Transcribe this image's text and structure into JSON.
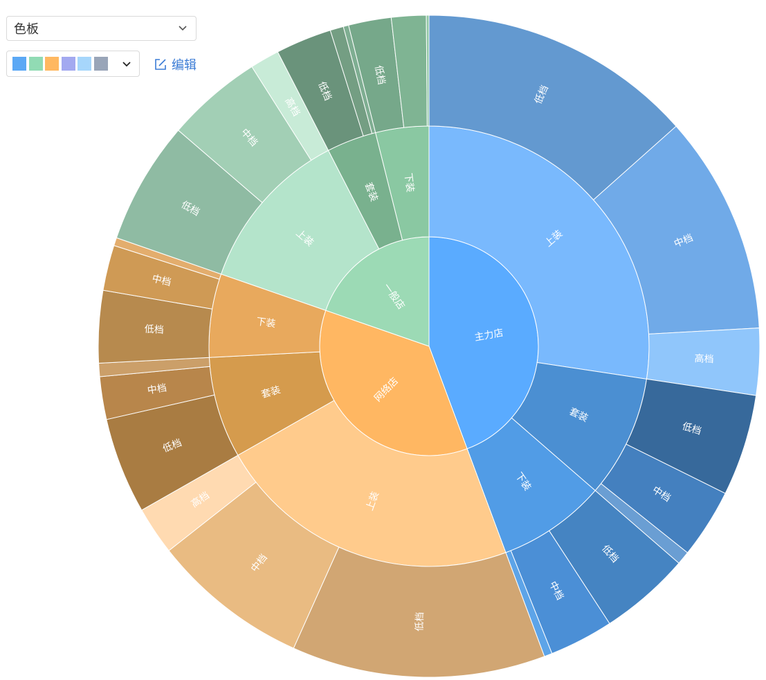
{
  "controls": {
    "palette_select": {
      "value": "色板"
    },
    "color_swatches": [
      "#5ba8f5",
      "#91dbb4",
      "#ffb861",
      "#a3a9f0",
      "#a6d6fb",
      "#99a5b8"
    ],
    "edit_label": "编辑"
  },
  "chart_data": {
    "type": "sunburst",
    "levels": [
      "store",
      "category",
      "tier"
    ],
    "children": [
      {
        "name": "主力店",
        "color": "#5aabff",
        "children": [
          {
            "name": "上装",
            "color": "#79b9fd",
            "children": [
              {
                "name": "低档",
                "value": 103,
                "color": "#6399d0"
              },
              {
                "name": "中档",
                "value": 82,
                "color": "#70aae8"
              },
              {
                "name": "高档",
                "value": 25,
                "color": "#90c6fb"
              }
            ]
          },
          {
            "name": "套装",
            "color": "#4b8fd2",
            "children": [
              {
                "name": "低档",
                "value": 38,
                "color": "#37699b"
              },
              {
                "name": "中档",
                "value": 26,
                "color": "#4480bf"
              },
              {
                "name": "",
                "value": 5,
                "color": "#6a9ed3"
              }
            ]
          },
          {
            "name": "下装",
            "color": "#519ce6",
            "children": [
              {
                "name": "低档",
                "value": 34,
                "color": "#4584c2"
              },
              {
                "name": "中档",
                "value": 24,
                "color": "#4b8fd6"
              },
              {
                "name": "",
                "value": 3,
                "color": "#5da4e8"
              }
            ]
          }
        ]
      },
      {
        "name": "网络店",
        "color": "#ffb762",
        "children": [
          {
            "name": "上装",
            "color": "#ffcb8c",
            "children": [
              {
                "name": "低档",
                "value": 95,
                "color": "#d1a673"
              },
              {
                "name": "中档",
                "value": 59,
                "color": "#e9bb82"
              },
              {
                "name": "高档",
                "value": 18,
                "color": "#ffdab1"
              }
            ]
          },
          {
            "name": "套装",
            "color": "#d59b4d",
            "children": [
              {
                "name": "低档",
                "value": 36,
                "color": "#a97c42"
              },
              {
                "name": "中档",
                "value": 16,
                "color": "#b8864b"
              },
              {
                "name": "",
                "value": 5,
                "color": "#cb9f69"
              }
            ]
          },
          {
            "name": "下装",
            "color": "#e8a95d",
            "children": [
              {
                "name": "低档",
                "value": 27,
                "color": "#b78a4e"
              },
              {
                "name": "中档",
                "value": 17,
                "color": "#cf9a55"
              },
              {
                "name": "",
                "value": 3,
                "color": "#e3ad6d"
              }
            ]
          }
        ]
      },
      {
        "name": "一般店",
        "color": "#9cdab5",
        "children": [
          {
            "name": "上装",
            "color": "#b4e4cb",
            "children": [
              {
                "name": "低档",
                "value": 46,
                "color": "#8fbba3"
              },
              {
                "name": "中档",
                "value": 36,
                "color": "#a2cfb5"
              },
              {
                "name": "高档",
                "value": 11,
                "color": "#c8ebd7"
              }
            ]
          },
          {
            "name": "套装",
            "color": "#79b18e",
            "children": [
              {
                "name": "低档",
                "value": 21,
                "color": "#6a937b"
              },
              {
                "name": "",
                "value": 5,
                "color": "#749e83"
              },
              {
                "name": "",
                "value": 2,
                "color": "#7fae92"
              }
            ]
          },
          {
            "name": "下装",
            "color": "#8ac8a2",
            "children": [
              {
                "name": "低档",
                "value": 16,
                "color": "#76a88a"
              },
              {
                "name": "",
                "value": 13,
                "color": "#7fb493"
              },
              {
                "name": "",
                "value": 1,
                "color": "#92c7a5"
              }
            ]
          }
        ]
      }
    ]
  }
}
